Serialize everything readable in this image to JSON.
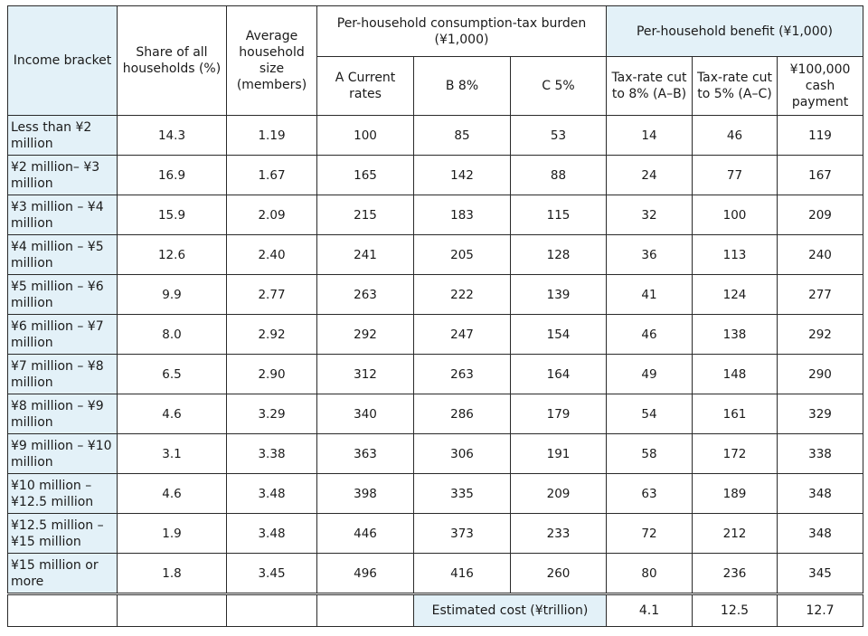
{
  "headers": {
    "income_bracket": "Income bracket",
    "share": "Share of all households (%)",
    "avg_size": "Average household size (members)",
    "burden_group": "Per-household consumption-tax burden (¥1,000)",
    "benefit_group": "Per-household benefit (¥1,000)",
    "col_a": "A Current rates",
    "col_b": "B 8%",
    "col_c": "C 5%",
    "col_cut8": "Tax-rate cut to 8% (A–B)",
    "col_cut5": "Tax-rate cut to 5% (A–C)",
    "col_cash": "¥100,000 cash payment"
  },
  "rows": [
    {
      "bracket": "Less than ¥2 million",
      "share": "14.3",
      "size": "1.19",
      "a": "100",
      "b": "85",
      "c": "53",
      "cut8": "14",
      "cut5": "46",
      "cash": "119"
    },
    {
      "bracket": "¥2 million– ¥3 million",
      "share": "16.9",
      "size": "1.67",
      "a": "165",
      "b": "142",
      "c": "88",
      "cut8": "24",
      "cut5": "77",
      "cash": "167"
    },
    {
      "bracket": "¥3 million – ¥4 million",
      "share": "15.9",
      "size": "2.09",
      "a": "215",
      "b": "183",
      "c": "115",
      "cut8": "32",
      "cut5": "100",
      "cash": "209"
    },
    {
      "bracket": "¥4 million – ¥5 million",
      "share": "12.6",
      "size": "2.40",
      "a": "241",
      "b": "205",
      "c": "128",
      "cut8": "36",
      "cut5": "113",
      "cash": "240"
    },
    {
      "bracket": "¥5 million – ¥6 million",
      "share": "9.9",
      "size": "2.77",
      "a": "263",
      "b": "222",
      "c": "139",
      "cut8": "41",
      "cut5": "124",
      "cash": "277"
    },
    {
      "bracket": "¥6 million – ¥7 million",
      "share": "8.0",
      "size": "2.92",
      "a": "292",
      "b": "247",
      "c": "154",
      "cut8": "46",
      "cut5": "138",
      "cash": "292"
    },
    {
      "bracket": "¥7 million – ¥8 million",
      "share": "6.5",
      "size": "2.90",
      "a": "312",
      "b": "263",
      "c": "164",
      "cut8": "49",
      "cut5": "148",
      "cash": "290"
    },
    {
      "bracket": "¥8 million – ¥9 million",
      "share": "4.6",
      "size": "3.29",
      "a": "340",
      "b": "286",
      "c": "179",
      "cut8": "54",
      "cut5": "161",
      "cash": "329"
    },
    {
      "bracket": "¥9 million – ¥10 million",
      "share": "3.1",
      "size": "3.38",
      "a": "363",
      "b": "306",
      "c": "191",
      "cut8": "58",
      "cut5": "172",
      "cash": "338"
    },
    {
      "bracket": "¥10 million – ¥12.5 million",
      "share": "4.6",
      "size": "3.48",
      "a": "398",
      "b": "335",
      "c": "209",
      "cut8": "63",
      "cut5": "189",
      "cash": "348"
    },
    {
      "bracket": "¥12.5 million – ¥15 million",
      "share": "1.9",
      "size": "3.48",
      "a": "446",
      "b": "373",
      "c": "233",
      "cut8": "72",
      "cut5": "212",
      "cash": "348"
    },
    {
      "bracket": "¥15 million or more",
      "share": "1.8",
      "size": "3.45",
      "a": "496",
      "b": "416",
      "c": "260",
      "cut8": "80",
      "cut5": "236",
      "cash": "345"
    }
  ],
  "summary": {
    "label": "Estimated cost (¥trillion)",
    "cut8": "4.1",
    "cut5": "12.5",
    "cash": "12.7"
  }
}
